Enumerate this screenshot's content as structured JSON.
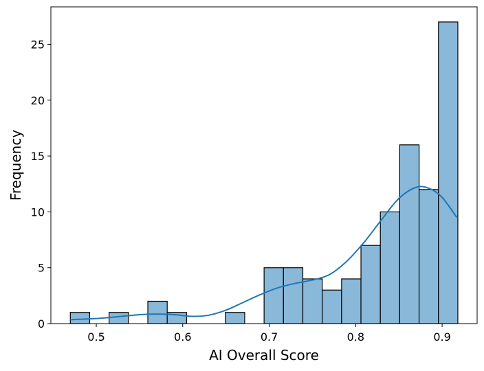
{
  "chart_data": {
    "type": "bar",
    "subtype": "histogram_with_kde",
    "title": "",
    "xlabel": "AI Overall Score",
    "ylabel": "Frequency",
    "xlim": [
      0.4475,
      0.9405
    ],
    "ylim": [
      0,
      28.35
    ],
    "x_ticks": [
      0.5,
      0.6,
      0.7,
      0.8,
      0.9
    ],
    "x_tick_labels": [
      "0.5",
      "0.6",
      "0.7",
      "0.8",
      "0.9"
    ],
    "y_ticks": [
      0,
      5,
      10,
      15,
      20,
      25
    ],
    "y_tick_labels": [
      "0",
      "5",
      "10",
      "15",
      "20",
      "25"
    ],
    "bin_start": 0.47,
    "bin_width": 0.02241,
    "counts": [
      1,
      0,
      1,
      0,
      2,
      1,
      0,
      0,
      1,
      0,
      5,
      5,
      4,
      3,
      4,
      7,
      10,
      16,
      12,
      27
    ],
    "kde": {
      "x": [
        0.47,
        0.5,
        0.53,
        0.55,
        0.57,
        0.59,
        0.61,
        0.63,
        0.65,
        0.67,
        0.69,
        0.71,
        0.73,
        0.75,
        0.77,
        0.79,
        0.81,
        0.83,
        0.85,
        0.87,
        0.885,
        0.9,
        0.917
      ],
      "y": [
        0.35,
        0.45,
        0.65,
        0.8,
        0.85,
        0.8,
        0.65,
        0.75,
        1.2,
        1.9,
        2.6,
        3.2,
        3.6,
        3.9,
        4.4,
        5.6,
        7.3,
        9.3,
        11.2,
        12.2,
        12.1,
        11.3,
        9.5
      ]
    },
    "grid": false,
    "legend": "none",
    "bar_color": "#8ab8d9",
    "edge_color": "#000000",
    "line_color": "#1f77b4"
  }
}
